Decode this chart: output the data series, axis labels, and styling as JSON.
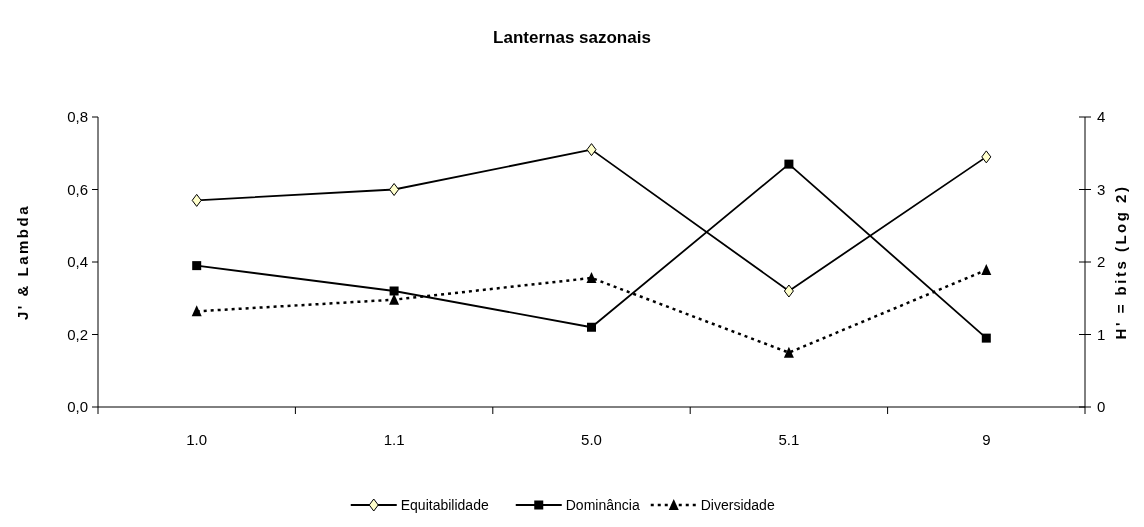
{
  "chart_data": {
    "type": "line",
    "title": "Lanternas sazonais",
    "ylabel": "J' & Lambda",
    "y2label": "H' = bits (Log 2)",
    "categories": [
      "1.0",
      "1.1",
      "5.0",
      "5.1",
      "9"
    ],
    "series": [
      {
        "name": "Equitabilidade",
        "color": "#000000",
        "marker": "diamond",
        "line_style": "solid",
        "values": [
          0.57,
          0.6,
          0.71,
          0.32,
          0.69
        ]
      },
      {
        "name": "Dominância",
        "color": "#000000",
        "marker": "square",
        "line_style": "solid",
        "values": [
          0.39,
          0.32,
          0.22,
          0.67,
          0.19
        ]
      },
      {
        "name": "Diversidade",
        "color": "#000000",
        "marker": "triangle",
        "line_style": "dotted",
        "axis": "y2",
        "values": [
          1.32,
          1.48,
          1.78,
          0.75,
          1.89
        ]
      }
    ],
    "ylim": [
      0,
      0.8
    ],
    "yticks": [
      {
        "value": 0,
        "label": "0,0"
      },
      {
        "value": 0.2,
        "label": "0,2"
      },
      {
        "value": 0.4,
        "label": "0,4"
      },
      {
        "value": 0.6,
        "label": "0,6"
      },
      {
        "value": 0.8,
        "label": "0,8"
      }
    ],
    "y2lim": [
      0,
      4
    ],
    "y2ticks": [
      0,
      1,
      2,
      3,
      4
    ],
    "grid": false,
    "legend": "bottom"
  }
}
